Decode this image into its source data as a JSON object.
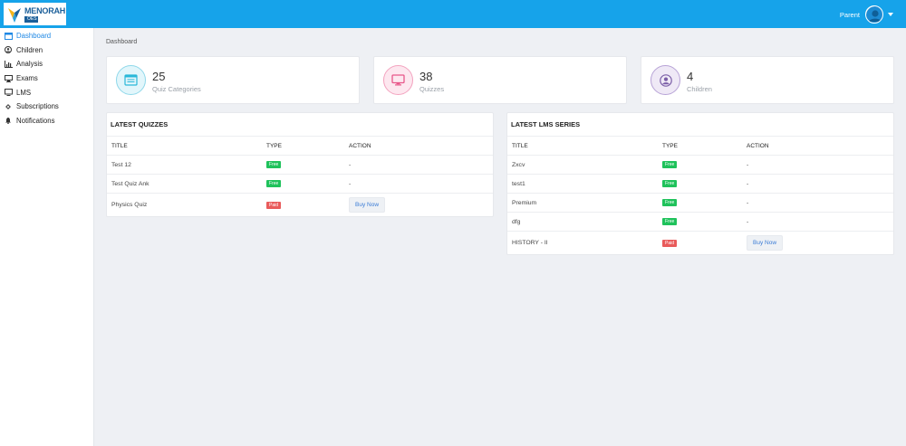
{
  "brand": {
    "name": "MENORAH",
    "sub": "OES",
    "accent": "#16a3ea"
  },
  "header": {
    "user_name": "Parent"
  },
  "sidebar": {
    "items": [
      {
        "label": "Dashboard",
        "icon": "dashboard-icon",
        "active": true
      },
      {
        "label": "Children",
        "icon": "user-circle-icon"
      },
      {
        "label": "Analysis",
        "icon": "bar-chart-icon"
      },
      {
        "label": "Exams",
        "icon": "desktop-icon"
      },
      {
        "label": "LMS",
        "icon": "monitor-icon"
      },
      {
        "label": "Subscriptions",
        "icon": "puzzle-icon"
      },
      {
        "label": "Notifications",
        "icon": "bell-icon"
      }
    ]
  },
  "breadcrumb": "Dashboard",
  "stats": [
    {
      "value": "25",
      "label": "Quiz Categories",
      "color": "#29b8d9"
    },
    {
      "value": "38",
      "label": "Quizzes",
      "color": "#e8578a"
    },
    {
      "value": "4",
      "label": "Children",
      "color": "#7b5ea7"
    }
  ],
  "latest_quizzes": {
    "title": "LATEST QUIZZES",
    "columns": [
      "TITLE",
      "TYPE",
      "ACTION"
    ],
    "rows": [
      {
        "title": "Test 12",
        "type": "Free",
        "action": "-"
      },
      {
        "title": "Test Quiz Ank",
        "type": "Free",
        "action": "-"
      },
      {
        "title": "Physics Quiz",
        "type": "Paid",
        "action": "Buy Now"
      }
    ]
  },
  "latest_lms": {
    "title": "LATEST LMS SERIES",
    "columns": [
      "TITLE",
      "TYPE",
      "ACTION"
    ],
    "rows": [
      {
        "title": "Zxcv",
        "type": "Free",
        "action": "-"
      },
      {
        "title": "test1",
        "type": "Free",
        "action": "-"
      },
      {
        "title": "Premium",
        "type": "Free",
        "action": "-"
      },
      {
        "title": "dfg",
        "type": "Free",
        "action": "-"
      },
      {
        "title": "HISTORY - II",
        "type": "Paid",
        "action": "Buy Now"
      }
    ]
  }
}
